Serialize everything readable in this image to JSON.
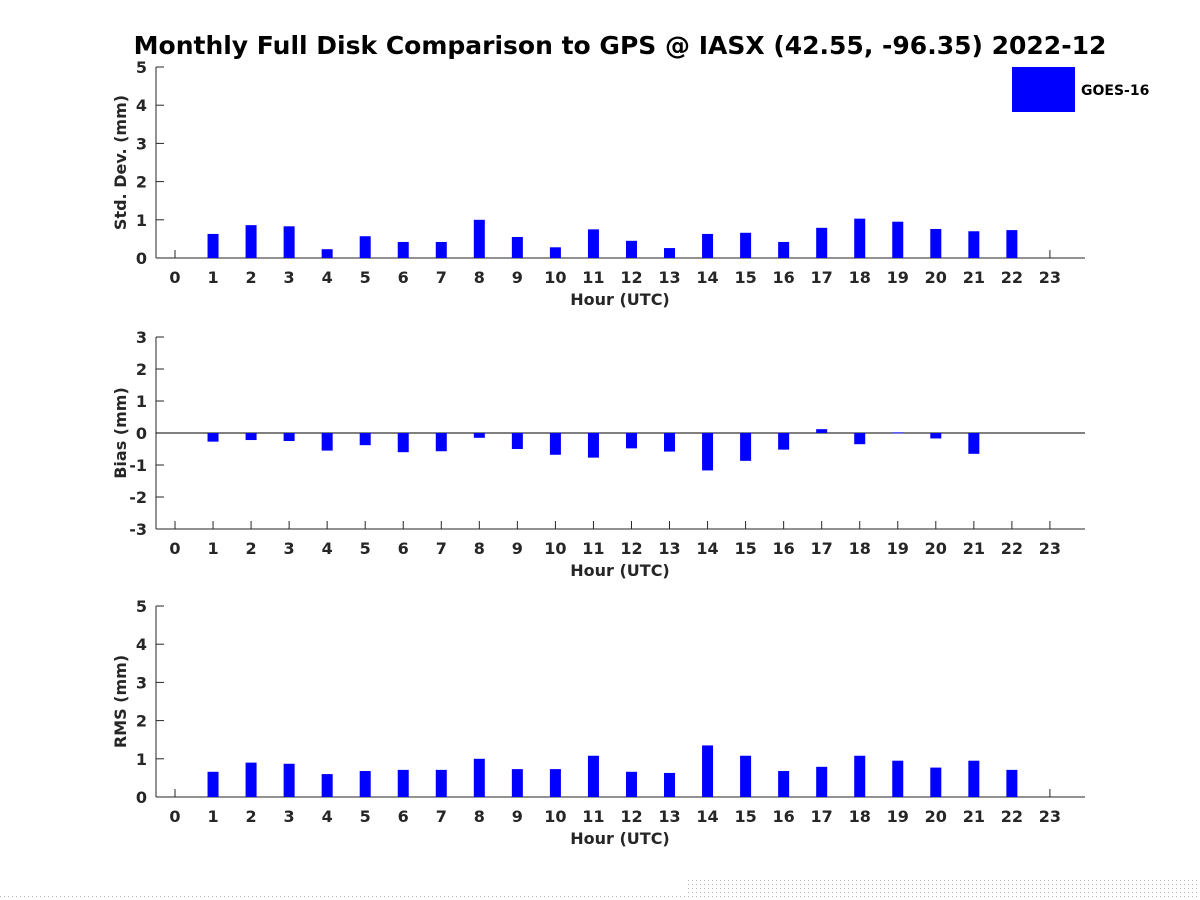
{
  "chart_data": {
    "title": "Monthly Full Disk Comparison to GPS @ IASX (42.55, -96.35) 2022-12",
    "legend": {
      "label": "GOES-16",
      "color": "#0000ff",
      "placement": "top-right"
    },
    "bar_color": "#0000ff",
    "panels": [
      {
        "type": "bar",
        "ylabel": "Std. Dev. (mm)",
        "xlabel": "Hour (UTC)",
        "ylim": [
          0,
          5
        ],
        "yticks": [
          0,
          1,
          2,
          3,
          4,
          5
        ],
        "x": [
          0,
          1,
          2,
          3,
          4,
          5,
          6,
          7,
          8,
          9,
          10,
          11,
          12,
          13,
          14,
          15,
          16,
          17,
          18,
          19,
          20,
          21,
          22,
          23
        ],
        "values": [
          null,
          0.63,
          0.86,
          0.83,
          0.23,
          0.57,
          0.42,
          0.42,
          1.0,
          0.55,
          0.28,
          0.75,
          0.45,
          0.26,
          0.63,
          0.66,
          0.42,
          0.79,
          1.03,
          0.95,
          0.76,
          0.7,
          0.73,
          null
        ],
        "series_name": "GOES-16"
      },
      {
        "type": "bar",
        "ylabel": "Bias (mm)",
        "xlabel": "Hour (UTC)",
        "ylim": [
          -3,
          3
        ],
        "yticks": [
          -3,
          -2,
          -1,
          0,
          1,
          2,
          3
        ],
        "x": [
          0,
          1,
          2,
          3,
          4,
          5,
          6,
          7,
          8,
          9,
          10,
          11,
          12,
          13,
          14,
          15,
          16,
          17,
          18,
          19,
          20,
          21,
          22,
          23
        ],
        "values": [
          null,
          -0.27,
          -0.22,
          -0.25,
          -0.55,
          -0.38,
          -0.6,
          -0.57,
          -0.15,
          -0.5,
          -0.68,
          -0.77,
          -0.48,
          -0.58,
          -1.17,
          -0.87,
          -0.52,
          0.12,
          -0.35,
          0.02,
          -0.17,
          -0.65,
          null,
          null
        ],
        "series_name": "GOES-16"
      },
      {
        "type": "bar",
        "ylabel": "RMS (mm)",
        "xlabel": "Hour (UTC)",
        "ylim": [
          0,
          5
        ],
        "yticks": [
          0,
          1,
          2,
          3,
          4,
          5
        ],
        "x": [
          0,
          1,
          2,
          3,
          4,
          5,
          6,
          7,
          8,
          9,
          10,
          11,
          12,
          13,
          14,
          15,
          16,
          17,
          18,
          19,
          20,
          21,
          22,
          23
        ],
        "values": [
          null,
          0.66,
          0.9,
          0.87,
          0.6,
          0.68,
          0.71,
          0.71,
          1.0,
          0.73,
          0.73,
          1.08,
          0.66,
          0.63,
          1.35,
          1.08,
          0.68,
          0.79,
          1.08,
          0.95,
          0.77,
          0.95,
          0.71,
          null
        ],
        "series_name": "GOES-16"
      }
    ]
  }
}
